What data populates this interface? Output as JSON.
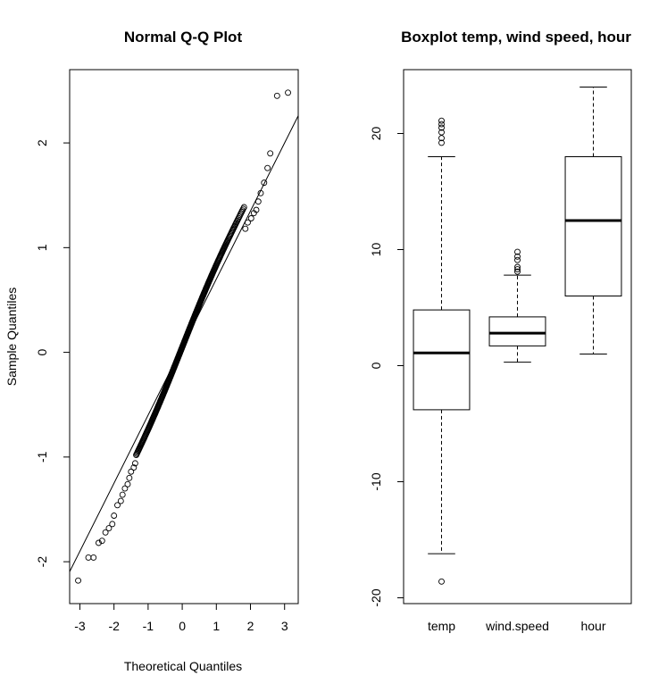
{
  "chart_data": [
    {
      "type": "scatter",
      "title": "Normal Q-Q Plot",
      "xlabel": "Theoretical Quantiles",
      "ylabel": "Sample Quantiles",
      "xlim": [
        -3.3,
        3.4
      ],
      "ylim": [
        -2.4,
        2.7
      ],
      "xticks": [
        -3,
        -2,
        -1,
        0,
        1,
        2,
        3
      ],
      "yticks": [
        -2,
        -1,
        0,
        1,
        2
      ],
      "reference_line": {
        "intercept": 0.05,
        "slope": 0.65
      },
      "points": {
        "n_body": 360,
        "body_fit": {
          "intercept": 0.05,
          "slope": 0.92
        },
        "tail_points": [
          [
            -3.05,
            -2.18
          ],
          [
            -2.75,
            -1.96
          ],
          [
            -2.6,
            -1.96
          ],
          [
            -2.45,
            -1.82
          ],
          [
            -2.35,
            -1.8
          ],
          [
            -2.25,
            -1.72
          ],
          [
            -2.15,
            -1.68
          ],
          [
            -2.05,
            -1.64
          ],
          [
            -2.0,
            -1.56
          ],
          [
            -1.9,
            -1.46
          ],
          [
            -1.8,
            -1.42
          ],
          [
            -1.75,
            -1.36
          ],
          [
            -1.68,
            -1.3
          ],
          [
            -1.6,
            -1.26
          ],
          [
            -1.55,
            -1.2
          ],
          [
            -1.5,
            -1.14
          ],
          [
            -1.42,
            -1.1
          ],
          [
            -1.38,
            -1.06
          ],
          [
            1.85,
            1.18
          ],
          [
            1.92,
            1.24
          ],
          [
            2.02,
            1.28
          ],
          [
            2.1,
            1.33
          ],
          [
            2.17,
            1.36
          ],
          [
            2.23,
            1.44
          ],
          [
            2.3,
            1.52
          ],
          [
            2.4,
            1.62
          ],
          [
            2.5,
            1.76
          ],
          [
            2.58,
            1.9
          ],
          [
            2.78,
            2.45
          ],
          [
            3.1,
            2.48
          ]
        ]
      }
    },
    {
      "type": "boxplot",
      "title": "Boxplot temp, wind speed, hour",
      "categories": [
        "temp",
        "wind.speed",
        "hour"
      ],
      "ylim": [
        -20.5,
        25.5
      ],
      "yticks": [
        -20,
        -10,
        0,
        10,
        20
      ],
      "boxes": [
        {
          "name": "temp",
          "q1": -3.8,
          "median": 1.1,
          "q3": 4.8,
          "whisker_low": -16.2,
          "whisker_high": 18.0,
          "outliers": [
            -18.6,
            19.2,
            19.6,
            20.1,
            20.5,
            20.8,
            21.1
          ]
        },
        {
          "name": "wind.speed",
          "q1": 1.7,
          "median": 2.8,
          "q3": 4.2,
          "whisker_low": 0.3,
          "whisker_high": 7.8,
          "outliers": [
            8.1,
            8.3,
            8.5,
            9.1,
            9.4,
            9.8
          ]
        },
        {
          "name": "hour",
          "q1": 6.0,
          "median": 12.5,
          "q3": 18.0,
          "whisker_low": 1.0,
          "whisker_high": 24.0,
          "outliers": []
        }
      ]
    }
  ]
}
